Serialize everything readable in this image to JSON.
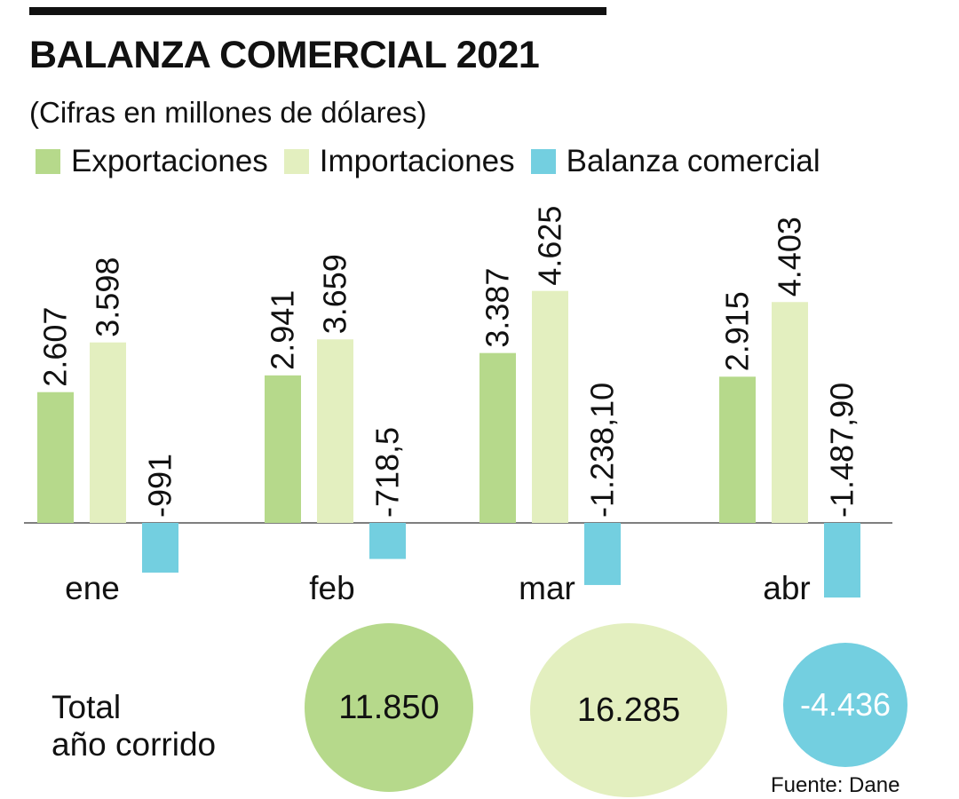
{
  "header": {
    "title": "BALANZA COMERCIAL 2021",
    "subtitle": "(Cifras en millones de dólares)"
  },
  "legend": {
    "exports": "Exportaciones",
    "imports": "Importaciones",
    "balance": "Balanza comercial"
  },
  "colors": {
    "exports": "#b6d98b",
    "imports": "#e3efbf",
    "balance": "#73cfe0",
    "text": "#111111"
  },
  "chart_data": {
    "type": "bar",
    "title": "BALANZA COMERCIAL 2021",
    "subtitle": "(Cifras en millones de dólares)",
    "categories": [
      "ene",
      "feb",
      "mar",
      "abr"
    ],
    "series": [
      {
        "name": "Exportaciones",
        "values": [
          2607,
          2941,
          3387,
          2915
        ],
        "labels": [
          "2.607",
          "2.941",
          "3.387",
          "2.915"
        ]
      },
      {
        "name": "Importaciones",
        "values": [
          3598,
          3659,
          4625,
          4403
        ],
        "labels": [
          "3.598",
          "3.659",
          "4.625",
          "4.403"
        ]
      },
      {
        "name": "Balanza comercial",
        "values": [
          -991,
          -718.5,
          -1238.1,
          -1487.9
        ],
        "labels": [
          "-991",
          "-718,5",
          "-1.238,10",
          "-1.487,90"
        ]
      }
    ],
    "ylim": [
      -1500,
      4700
    ],
    "grid": false,
    "legend_position": "top"
  },
  "totals": {
    "label_line1": "Total",
    "label_line2": "año corrido",
    "exports": "11.850",
    "imports": "16.285",
    "balance": "-4.436"
  },
  "source": "Fuente: Dane"
}
